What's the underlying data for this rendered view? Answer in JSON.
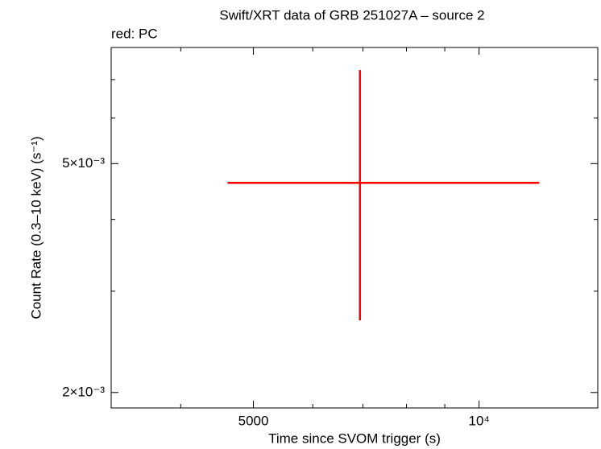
{
  "chart_data": {
    "type": "errorbar",
    "title": "Swift/XRT data of GRB 251027A – source 2",
    "annotation": "red: PC",
    "xlabel": "Time since SVOM trigger (s)",
    "ylabel": "Count Rate (0.3–10 keV) (s⁻¹)",
    "xscale": "log",
    "yscale": "log",
    "xlim": [
      3230,
      14400
    ],
    "ylim": [
      0.00188,
      0.00796
    ],
    "xticks": [
      5000,
      {
        "value": 10000,
        "label": "10⁴"
      }
    ],
    "xminor": [
      4000,
      6000,
      7000,
      8000,
      9000
    ],
    "yticks": [
      {
        "value": 0.002,
        "label": "2×10⁻³"
      },
      {
        "value": 0.005,
        "label": "5×10⁻³"
      }
    ],
    "yminor": [
      0.003,
      0.004,
      0.006,
      0.007
    ],
    "series": [
      {
        "color": "#ff0000",
        "x": [
          6935
        ],
        "x_low": [
          4617
        ],
        "x_high": [
          12020
        ],
        "values": [
          0.00463
        ],
        "y_low": [
          0.00267
        ],
        "y_high": [
          0.00727
        ]
      }
    ]
  }
}
